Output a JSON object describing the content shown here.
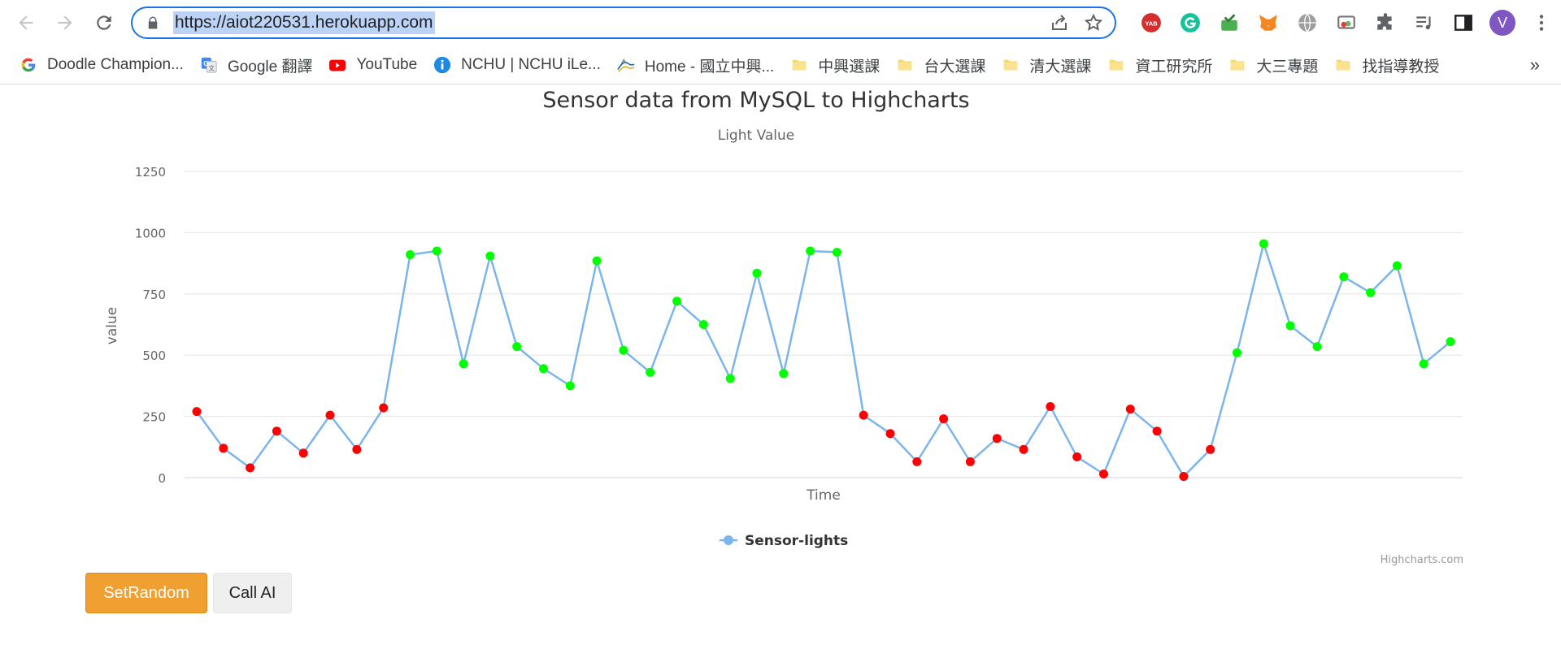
{
  "browser": {
    "url": "https://aiot220531.herokuapp.com",
    "profile_initial": "V",
    "bookmarks": [
      {
        "label": "Doodle Champion...",
        "icon": "google-icon"
      },
      {
        "label": "Google 翻譯",
        "icon": "google-translate-icon"
      },
      {
        "label": "YouTube",
        "icon": "youtube-icon"
      },
      {
        "label": "NCHU | NCHU iLe...",
        "icon": "info-icon"
      },
      {
        "label": "Home - 國立中興...",
        "icon": "mountain-logo-icon"
      },
      {
        "label": "中興選課",
        "icon": "folder-icon"
      },
      {
        "label": "台大選課",
        "icon": "folder-icon"
      },
      {
        "label": "清大選課",
        "icon": "folder-icon"
      },
      {
        "label": "資工研究所",
        "icon": "folder-icon"
      },
      {
        "label": "大三專題",
        "icon": "folder-icon"
      },
      {
        "label": "找指導教授",
        "icon": "folder-icon"
      }
    ],
    "more_label": "»",
    "extensions": [
      "yab-icon",
      "grammarly-icon",
      "check-icon",
      "metamask-icon",
      "globe-icon",
      "cast-icon",
      "puzzle-icon",
      "media-icon",
      "sidepanel-icon"
    ]
  },
  "buttons": {
    "set_random": "SetRandom",
    "call_ai": "Call AI"
  },
  "chart_data": {
    "type": "line",
    "title": "Sensor data from MySQL to Highcharts",
    "subtitle": "Light Value",
    "xlabel": "Time",
    "ylabel": "value",
    "ylim": [
      0,
      1250
    ],
    "yticks": [
      "0",
      "250",
      "500",
      "750",
      "1000",
      "1250"
    ],
    "grid": true,
    "legend": "bottom-center",
    "credits": "Highcharts.com",
    "line_color": "#7cb5ec",
    "low_color": "#ff0000",
    "high_color": "#00ff00",
    "threshold": 300,
    "series": [
      {
        "name": "Sensor-lights",
        "values": [
          270,
          120,
          40,
          190,
          100,
          255,
          115,
          285,
          910,
          925,
          465,
          905,
          535,
          445,
          375,
          885,
          520,
          430,
          720,
          625,
          405,
          835,
          425,
          925,
          920,
          255,
          180,
          65,
          240,
          65,
          160,
          115,
          290,
          85,
          15,
          280,
          190,
          5,
          115,
          510,
          955,
          620,
          535,
          820,
          755,
          865,
          465,
          555
        ]
      }
    ]
  }
}
